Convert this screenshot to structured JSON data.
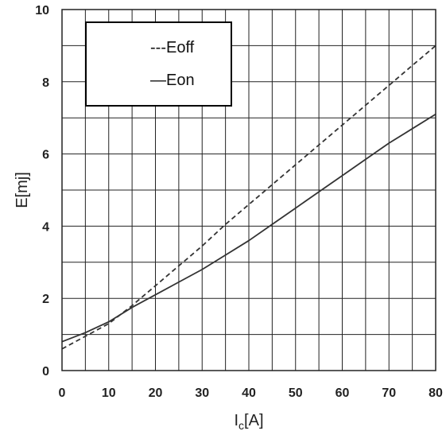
{
  "chart_data": {
    "type": "line",
    "xlabel_main": "I",
    "xlabel_sub": "c",
    "xlabel_unit": "[A]",
    "ylabel": "E[mj]",
    "xlim": [
      0,
      80
    ],
    "ylim": [
      0,
      10
    ],
    "x_ticks": [
      "0",
      "10",
      "20",
      "30",
      "40",
      "50",
      "60",
      "70",
      "80"
    ],
    "y_ticks": [
      "0",
      "2",
      "4",
      "6",
      "8",
      "10"
    ],
    "grid": true,
    "legend_position": "top-left",
    "series": [
      {
        "name": "---Eoff",
        "style": "dashed",
        "color": "#333333",
        "x": [
          0,
          5,
          10,
          15,
          20,
          25,
          30,
          35,
          40,
          45,
          50,
          55,
          60,
          65,
          70,
          75,
          80
        ],
        "y": [
          0.6,
          0.95,
          1.3,
          1.8,
          2.35,
          2.9,
          3.45,
          4.05,
          4.6,
          5.15,
          5.7,
          6.25,
          6.8,
          7.35,
          7.9,
          8.45,
          9.0
        ]
      },
      {
        "name": "—Eon",
        "style": "solid",
        "color": "#333333",
        "x": [
          0,
          5,
          10,
          15,
          20,
          25,
          30,
          35,
          40,
          45,
          50,
          55,
          60,
          65,
          70,
          75,
          80
        ],
        "y": [
          0.8,
          1.05,
          1.35,
          1.75,
          2.1,
          2.45,
          2.8,
          3.2,
          3.6,
          4.05,
          4.5,
          4.95,
          5.4,
          5.85,
          6.3,
          6.7,
          7.1
        ]
      }
    ]
  }
}
